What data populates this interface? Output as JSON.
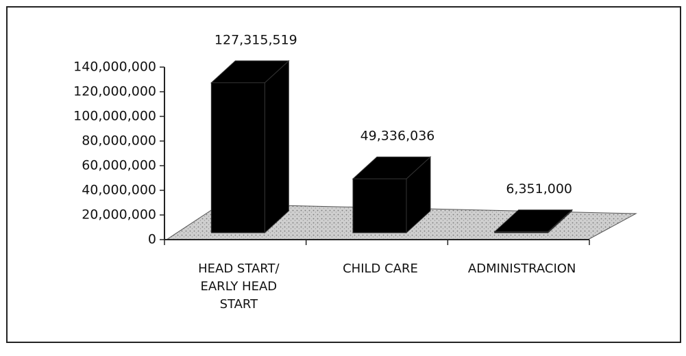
{
  "chart_data": {
    "type": "bar3d",
    "categories": [
      "HEAD START/ EARLY HEAD START",
      "CHILD CARE",
      "ADMINISTRACION"
    ],
    "values": [
      127315519,
      49336036,
      6351000
    ],
    "value_labels": [
      "127,315,519",
      "49,336,036",
      "6,351,000"
    ],
    "color": "#000000",
    "ylim": [
      0,
      140000000
    ],
    "yticks": [
      0,
      {
        "value": 20000000,
        "label": "20,000,000"
      },
      {
        "value": 40000000,
        "label": "40,000,000"
      },
      {
        "value": 60000000,
        "label": "60,000,000"
      },
      {
        "value": 80000000,
        "label": "80,000,000"
      },
      {
        "value": 100000000,
        "label": "100,000,000"
      },
      {
        "value": 120000000,
        "label": "120,000,000"
      },
      {
        "value": 140000000,
        "label": "140,000,000"
      }
    ]
  }
}
